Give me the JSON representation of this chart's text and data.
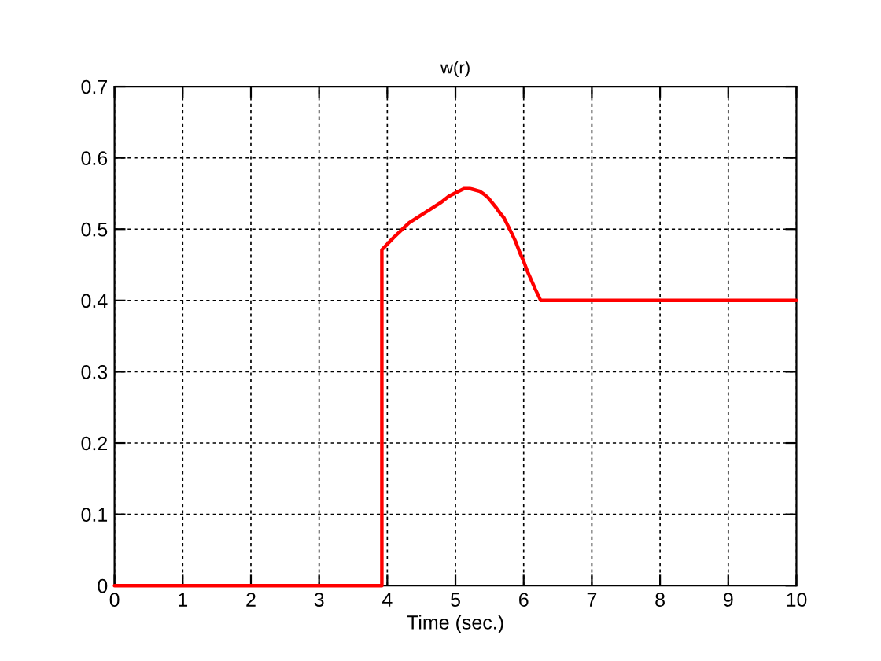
{
  "chart_data": {
    "type": "line",
    "title": "w(r)",
    "xlabel": "Time (sec.)",
    "series": [
      {
        "color": "#ff0000",
        "x": [
          0,
          3.92,
          3.92,
          4.09,
          4.32,
          4.55,
          4.78,
          4.9,
          5.0,
          5.13,
          5.21,
          5.25,
          5.36,
          5.42,
          5.48,
          5.59,
          5.65,
          5.71,
          5.82,
          5.88,
          5.94,
          6.0,
          6.05,
          6.17,
          6.25,
          10
        ],
        "values": [
          0,
          0,
          0.471,
          0.488,
          0.509,
          0.523,
          0.537,
          0.546,
          0.551,
          0.557,
          0.557,
          0.556,
          0.553,
          0.549,
          0.544,
          0.531,
          0.523,
          0.516,
          0.495,
          0.483,
          0.468,
          0.455,
          0.442,
          0.416,
          0.4,
          0.4
        ]
      }
    ],
    "xlim": [
      0,
      10
    ],
    "xticks": [
      0,
      1,
      2,
      3,
      4,
      5,
      6,
      7,
      8,
      9,
      10
    ],
    "ylim": [
      0,
      0.7
    ],
    "yticks": [
      0,
      0.1,
      0.2,
      0.3,
      0.4,
      0.5,
      0.6,
      0.7
    ],
    "grid": true,
    "line_style": "solid",
    "marker": "none"
  }
}
